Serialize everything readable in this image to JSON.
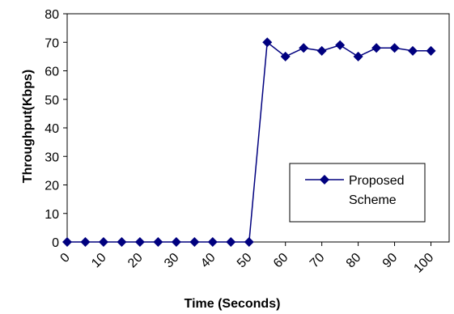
{
  "chart_data": {
    "type": "line",
    "title": "",
    "xlabel": "Time (Seconds)",
    "ylabel": "Throughput(Kbps)",
    "ylim": [
      0,
      80
    ],
    "yticks": [
      0,
      10,
      20,
      30,
      40,
      50,
      60,
      70,
      80
    ],
    "xlim": [
      0,
      105
    ],
    "xticks": [
      0,
      10,
      20,
      30,
      40,
      50,
      60,
      70,
      80,
      90,
      100
    ],
    "xtick_labels": [
      "0",
      "10",
      "20",
      "30",
      "40",
      "50",
      "60",
      "70",
      "80",
      "90",
      "100"
    ],
    "grid": false,
    "legend_position": "lower-right",
    "series": [
      {
        "name": "Proposed Scheme",
        "color": "#00007F",
        "marker": "diamond",
        "x": [
          0,
          5,
          10,
          15,
          20,
          25,
          30,
          35,
          40,
          45,
          50,
          55,
          60,
          65,
          70,
          75,
          80,
          85,
          90,
          95,
          100
        ],
        "y": [
          0,
          0,
          0,
          0,
          0,
          0,
          0,
          0,
          0,
          0,
          0,
          70,
          65,
          68,
          67,
          69,
          65,
          68,
          68,
          67,
          67
        ]
      }
    ]
  },
  "legend": {
    "line1": "Proposed",
    "line2": "Scheme"
  }
}
